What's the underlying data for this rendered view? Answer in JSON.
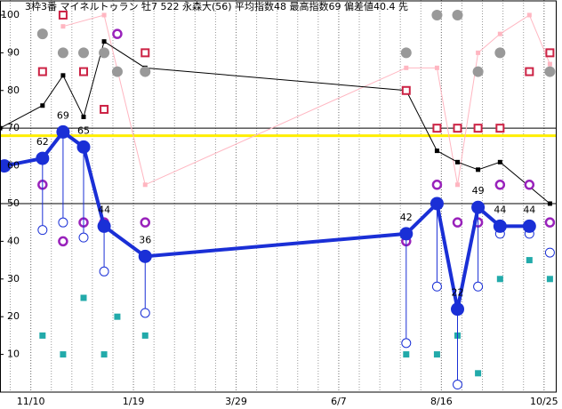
{
  "chart_data": {
    "type": "line",
    "title": "3枠3番 マイネルトゥラン 牡7 522 永森大(56) 平均指数48 最高指数69 偏差値40.4 先",
    "xlim": [
      -21,
      358
    ],
    "xticks": [
      {
        "value": 0,
        "label": "11/10"
      },
      {
        "value": 70,
        "label": "1/19"
      },
      {
        "value": 140,
        "label": "3/29"
      },
      {
        "value": 210,
        "label": "6/7"
      },
      {
        "value": 280,
        "label": "8/16"
      },
      {
        "value": 350,
        "label": "10/25"
      }
    ],
    "xgrid_step": 14,
    "ylim": [
      0,
      104
    ],
    "yticks": [
      10,
      20,
      30,
      40,
      50,
      60,
      70,
      80,
      90,
      100
    ],
    "hlines": [
      50,
      70
    ],
    "reference_line": {
      "value": 68,
      "color": "#ffee00"
    },
    "series": [
      {
        "color": "#ffb6c1",
        "line": true,
        "marker": "square-small",
        "x": [
          22,
          50,
          78,
          256,
          277,
          291,
          305,
          320,
          340,
          354
        ],
        "values": [
          97,
          100,
          55,
          86,
          86,
          55,
          90,
          95,
          100,
          87
        ]
      },
      {
        "color": "#000000",
        "line": true,
        "marker": "square-small",
        "x": [
          -21,
          8,
          22,
          36,
          50,
          78,
          256,
          277,
          291,
          305,
          320,
          354
        ],
        "values": [
          70,
          76,
          84,
          73,
          93,
          86,
          80,
          64,
          61,
          59,
          61,
          50
        ]
      },
      {
        "color": "#999999",
        "line": false,
        "marker": "circle-filled",
        "x": [
          8,
          22,
          36,
          50,
          59,
          78,
          256,
          277,
          291,
          305,
          320,
          354
        ],
        "values": [
          95,
          90,
          90,
          90,
          85,
          85,
          90,
          100,
          100,
          85,
          90,
          85
        ]
      },
      {
        "color": "#cc2244",
        "line": false,
        "marker": "square-hollow",
        "x": [
          8,
          22,
          36,
          50,
          78,
          256,
          277,
          291,
          305,
          320,
          340,
          354
        ],
        "values": [
          85,
          100,
          85,
          75,
          90,
          80,
          70,
          70,
          70,
          70,
          85,
          90
        ]
      },
      {
        "color": "#9922bb",
        "line": false,
        "marker": "circle-hollow",
        "x": [
          8,
          22,
          36,
          50,
          59,
          78,
          256,
          277,
          291,
          305,
          320,
          340,
          354
        ],
        "values": [
          55,
          40,
          45,
          45,
          95,
          45,
          40,
          55,
          45,
          45,
          55,
          55,
          45
        ]
      },
      {
        "color": "#22aaaa",
        "line": false,
        "marker": "square-filled",
        "x": [
          8,
          22,
          36,
          50,
          59,
          78,
          256,
          277,
          291,
          305,
          320,
          340,
          354
        ],
        "values": [
          15,
          10,
          25,
          10,
          20,
          15,
          10,
          10,
          15,
          5,
          30,
          35,
          30
        ]
      },
      {
        "color": "#1a2fd6",
        "line": false,
        "marker": "circle-open",
        "stems": true,
        "x": [
          8,
          22,
          36,
          50,
          78,
          256,
          277,
          291,
          305,
          320,
          340,
          354
        ],
        "values": [
          43,
          45,
          41,
          32,
          21,
          13,
          28,
          2,
          28,
          42,
          42,
          37
        ]
      },
      {
        "color": "#1a2fd6",
        "line": true,
        "main": true,
        "marker": "circle-big",
        "x": [
          -18,
          8,
          22,
          36,
          50,
          78,
          256,
          277,
          291,
          305,
          320,
          340
        ],
        "values": [
          60,
          62,
          69,
          65,
          44,
          36,
          42,
          50,
          22,
          49,
          44,
          44
        ],
        "value_labels": [
          null,
          "62",
          "69",
          "65",
          "44",
          "36",
          "42",
          null,
          "22",
          "49",
          "44",
          "44"
        ]
      }
    ]
  }
}
